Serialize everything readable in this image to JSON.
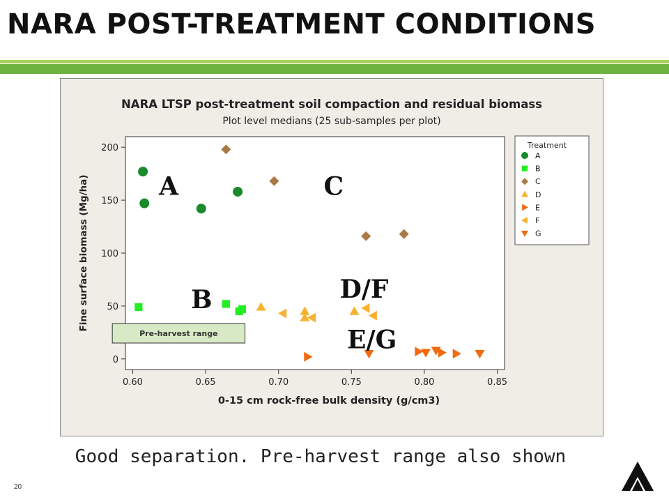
{
  "slide": {
    "title": "NARA POST-TREATMENT CONDITIONS",
    "caption": "Good separation.  Pre-harvest range also shown",
    "page_number": "20",
    "logo_icon": "triangle-a-logo-icon",
    "accent_light": "#a9d15a",
    "accent_dark": "#6db33f"
  },
  "chart_data": {
    "type": "scatter",
    "title": "NARA LTSP post-treatment soil compaction and residual biomass",
    "subtitle": "Plot level medians (25 sub-samples per plot)",
    "xlabel": "0-15 cm rock-free bulk density (g/cm3)",
    "ylabel": "Fine surface biomass (Mg/ha)",
    "xlim": [
      0.595,
      0.855
    ],
    "ylim": [
      -10,
      210
    ],
    "xticks": [
      0.6,
      0.65,
      0.7,
      0.75,
      0.8,
      0.85
    ],
    "xtick_labels": [
      "0.60",
      "0.65",
      "0.70",
      "0.75",
      "0.80",
      "0.85"
    ],
    "yticks": [
      0,
      50,
      100,
      150,
      200
    ],
    "ytick_labels": [
      "0",
      "50",
      "100",
      "150",
      "200"
    ],
    "grid": false,
    "legend_position": "right",
    "legend_title": "Treatment",
    "series": [
      {
        "name": "A",
        "marker": "circle",
        "color": "#1a8a2a",
        "points": [
          [
            0.607,
            177
          ],
          [
            0.608,
            147
          ],
          [
            0.647,
            142
          ],
          [
            0.672,
            158
          ]
        ]
      },
      {
        "name": "B",
        "marker": "square",
        "color": "#22ee22",
        "points": [
          [
            0.604,
            49
          ],
          [
            0.664,
            52
          ],
          [
            0.673,
            45
          ],
          [
            0.675,
            47
          ]
        ]
      },
      {
        "name": "C",
        "marker": "diamond",
        "color": "#a87a45",
        "points": [
          [
            0.664,
            198
          ],
          [
            0.697,
            168
          ],
          [
            0.76,
            116
          ],
          [
            0.786,
            118
          ]
        ]
      },
      {
        "name": "D",
        "marker": "triangle-up",
        "color": "#f7b330",
        "points": [
          [
            0.688,
            49
          ],
          [
            0.718,
            45
          ],
          [
            0.718,
            39
          ],
          [
            0.752,
            45
          ]
        ]
      },
      {
        "name": "E",
        "marker": "triangle-right",
        "color": "#f26a10",
        "points": [
          [
            0.72,
            2
          ],
          [
            0.796,
            7
          ],
          [
            0.812,
            6
          ],
          [
            0.822,
            5
          ]
        ]
      },
      {
        "name": "F",
        "marker": "triangle-left",
        "color": "#f7b330",
        "points": [
          [
            0.703,
            43
          ],
          [
            0.723,
            39
          ],
          [
            0.76,
            48
          ],
          [
            0.765,
            41
          ]
        ]
      },
      {
        "name": "G",
        "marker": "triangle-down",
        "color": "#f26a10",
        "points": [
          [
            0.762,
            5
          ],
          [
            0.801,
            6
          ],
          [
            0.808,
            8
          ],
          [
            0.838,
            5
          ]
        ]
      }
    ],
    "annotations": [
      {
        "text": "A",
        "x": 0.618,
        "y": 155
      },
      {
        "text": "C",
        "x": 0.731,
        "y": 155
      },
      {
        "text": "B",
        "x": 0.64,
        "y": 48
      },
      {
        "text": "D/F",
        "x": 0.742,
        "y": 58
      },
      {
        "text": "E/G",
        "x": 0.747,
        "y": 10
      }
    ],
    "pre_harvest_band": {
      "label": "Pre-harvest range",
      "x": [
        0.586,
        0.677
      ]
    }
  }
}
